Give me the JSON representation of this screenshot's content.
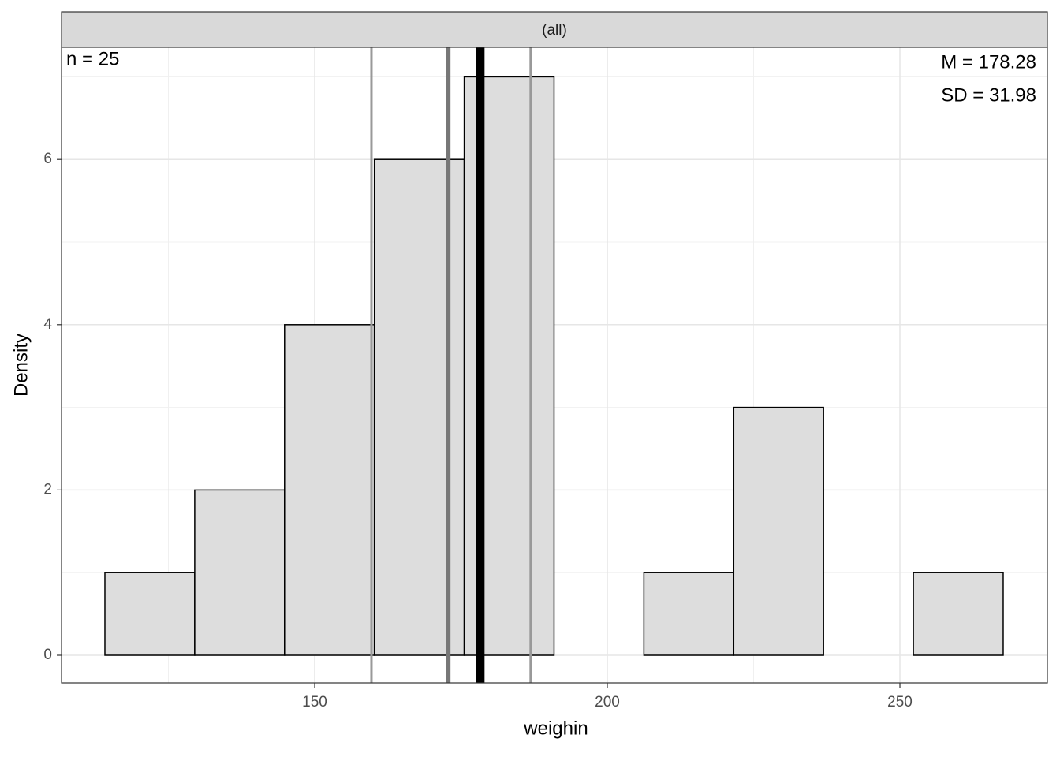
{
  "chart_data": {
    "type": "histogram",
    "strip_label": "(all)",
    "annotations": {
      "n": "n = 25",
      "mean": "M = 178.28",
      "sd": "SD = 31.98"
    },
    "x_label": "weighin",
    "y_label": "Density",
    "bins": [
      114.15,
      129.5,
      144.85,
      160.2,
      175.55,
      190.9,
      206.25,
      221.6,
      236.95,
      252.3,
      267.65
    ],
    "values": [
      1,
      2,
      4,
      6,
      7,
      0,
      1,
      3,
      0,
      1
    ],
    "color": "#dddddd",
    "edge_color": "#000000",
    "vlines": [
      {
        "value": 159.7,
        "color": "#999999",
        "width": 3
      },
      {
        "value": 172.8,
        "color": "#777777",
        "width": 6
      },
      {
        "value": 178.28,
        "color": "#000000",
        "width": 11
      },
      {
        "value": 186.9,
        "color": "#999999",
        "width": 3
      }
    ],
    "xlim": [
      106.74,
      275.2
    ],
    "xticks": [
      150,
      200,
      250
    ],
    "xminor": [
      125,
      175,
      225
    ],
    "ylim": [
      -0.334,
      7.357
    ],
    "yticks": [
      0,
      2,
      4,
      6
    ],
    "yminor": [
      1,
      3,
      5,
      7
    ],
    "grid": true
  }
}
